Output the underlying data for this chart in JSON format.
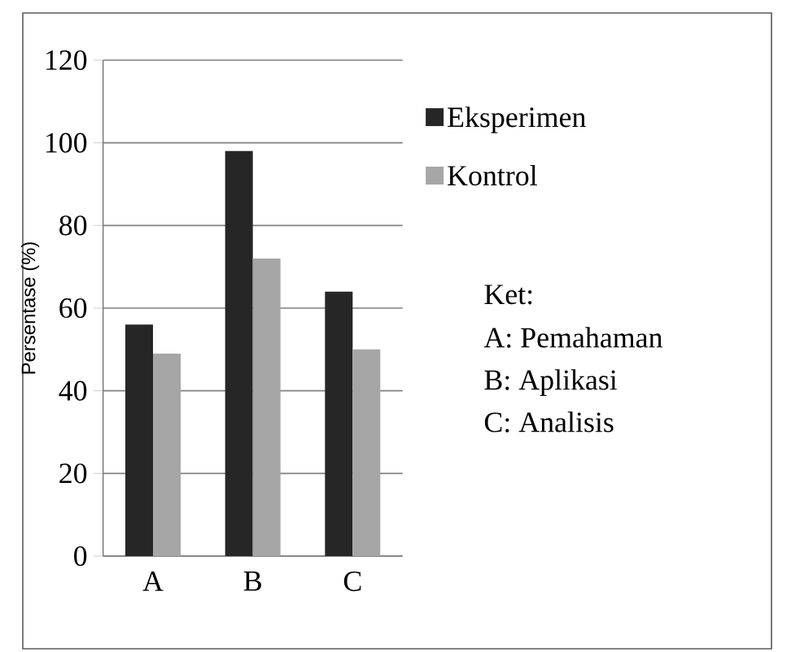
{
  "chart_data": {
    "type": "bar",
    "ylabel": "Persentase (%)",
    "categories": [
      "A",
      "B",
      "C"
    ],
    "series": [
      {
        "name": "Eksperimen",
        "color": "#262626",
        "values": [
          56,
          98,
          64
        ]
      },
      {
        "name": "Kontrol",
        "color": "#a6a6a6",
        "values": [
          49,
          72,
          50
        ]
      }
    ],
    "ylim": [
      0,
      120
    ],
    "yticks": [
      0,
      20,
      40,
      60,
      80,
      100,
      120
    ],
    "grid": "y",
    "legend": "right",
    "annotations": [
      "Ket:",
      "A: Pemahaman",
      "B: Aplikasi",
      "C: Analisis"
    ]
  }
}
